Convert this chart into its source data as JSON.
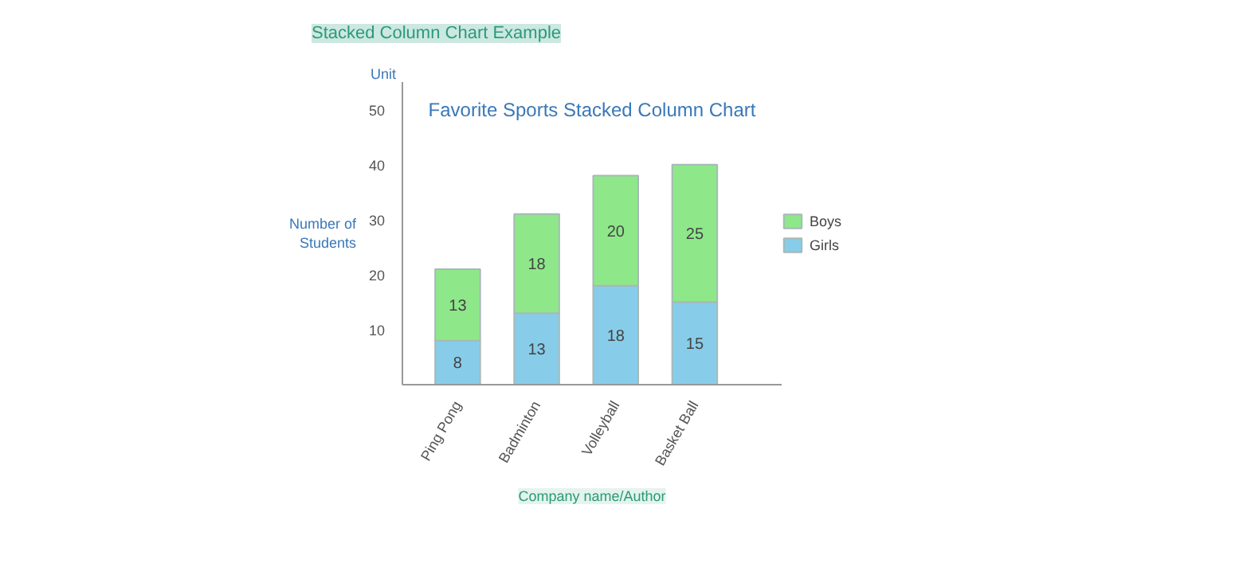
{
  "chart_data": {
    "type": "bar",
    "title": "Stacked Column Chart Example",
    "subtitle": "Favorite Sports Stacked Column Chart",
    "ylabel": "Number of Students",
    "annotations": [
      "Unit",
      "Company name/Author"
    ],
    "categories": [
      "Ping Pong",
      "Badminton",
      "Volleyball",
      "Basket Ball"
    ],
    "stacked": true,
    "series": [
      {
        "name": "Girls",
        "color": "#87cdea",
        "values": [
          8,
          13,
          18,
          15
        ]
      },
      {
        "name": "Boys",
        "color": "#8ee88a",
        "values": [
          13,
          18,
          20,
          25
        ]
      }
    ],
    "ylim": [
      0,
      55
    ],
    "yticks": [
      10,
      20,
      30,
      40,
      50
    ],
    "data_labels": true,
    "grid": false,
    "legend": "right"
  }
}
